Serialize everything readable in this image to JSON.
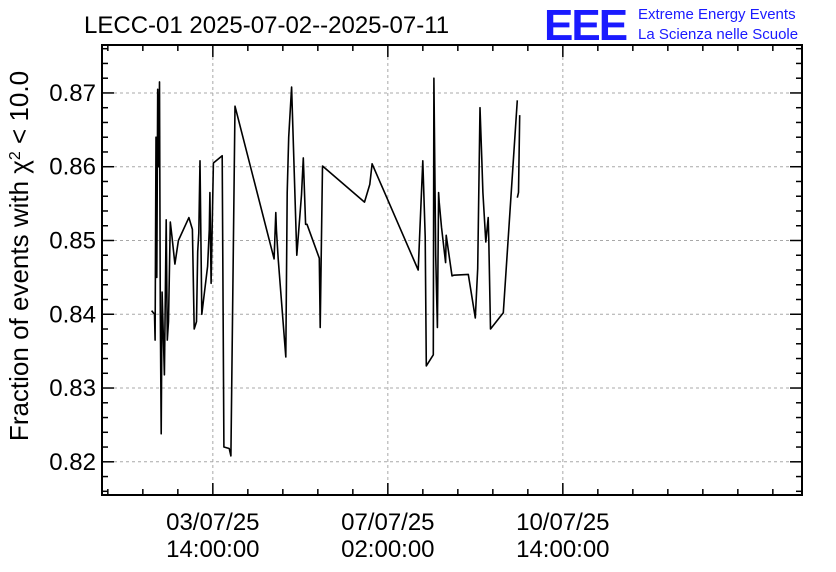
{
  "chart_data": {
    "type": "line",
    "title": "LECC-01 2025-07-02--2025-07-11",
    "ylabel_main": "Fraction of events with χ",
    "ylabel_sup": "2",
    "ylabel_tail": " < 10.0",
    "xlabel": "",
    "ylim": [
      0.8155,
      0.8765
    ],
    "y_ticks": [
      0.82,
      0.83,
      0.84,
      0.85,
      0.86,
      0.87
    ],
    "y_tick_labels": [
      "0.82",
      "0.83",
      "0.84",
      "0.85",
      "0.86",
      "0.87"
    ],
    "x_unit": "hours since start of plotted range",
    "xlim": [
      0,
      240
    ],
    "x_ticks": [
      {
        "x": 38,
        "date": "03/07/25",
        "time": "14:00:00"
      },
      {
        "x": 98,
        "date": "07/07/25",
        "time": "02:00:00"
      },
      {
        "x": 158,
        "date": "10/07/25",
        "time": "14:00:00"
      }
    ],
    "grid": true,
    "series": [
      {
        "x": [
          17.0,
          18.0,
          18.2,
          18.5,
          18.8,
          19.1,
          19.4,
          19.7,
          20.0,
          20.3,
          20.6,
          21.0,
          21.4,
          22.0,
          22.4,
          22.8,
          23.4,
          24.0,
          25.0,
          26.2,
          29.8,
          31.0,
          31.6,
          32.4,
          32.8,
          33.2,
          33.6,
          34.2,
          36.2,
          36.8,
          37.0,
          37.4,
          38.2,
          41.2,
          41.8,
          43.6,
          44.2,
          45.6,
          59.0,
          59.6,
          59.8,
          60.4,
          63.0,
          63.5,
          64.0,
          65.0,
          66.8,
          68.4,
          69.0,
          69.8,
          70.3,
          74.5,
          74.8,
          75.6,
          90.0,
          91.8,
          92.6,
          108.4,
          110.0,
          110.8,
          111.2,
          113.6,
          113.8,
          114.4,
          115.0,
          115.4,
          115.6,
          116.4,
          117.8,
          118.0,
          120.0,
          120.6,
          125.6,
          128.0,
          128.8,
          129.6,
          130.2,
          130.6,
          131.6,
          132.4,
          132.6,
          133.2,
          133.4,
          137.6,
          142.4
        ],
        "y": [
          0.8405,
          0.84,
          0.8365,
          0.864,
          0.845,
          0.8705,
          0.86,
          0.8715,
          0.8405,
          0.8238,
          0.843,
          0.8372,
          0.8318,
          0.8528,
          0.8365,
          0.839,
          0.8525,
          0.8505,
          0.8468,
          0.85,
          0.8531,
          0.8515,
          0.838,
          0.839,
          0.8485,
          0.851,
          0.8608,
          0.84,
          0.8465,
          0.8515,
          0.8565,
          0.8442,
          0.8605,
          0.8615,
          0.822,
          0.8218,
          0.8208,
          0.8682,
          0.8475,
          0.8538,
          0.8515,
          0.8475,
          0.8342,
          0.8565,
          0.864,
          0.8708,
          0.848,
          0.8562,
          0.8612,
          0.8522,
          0.8522,
          0.8476,
          0.8382,
          0.8601,
          0.8552,
          0.8576,
          0.8604,
          0.846,
          0.8608,
          0.8505,
          0.833,
          0.8345,
          0.872,
          0.848,
          0.8382,
          0.8565,
          0.8552,
          0.8518,
          0.847,
          0.8507,
          0.8452,
          0.8453,
          0.8454,
          0.8395,
          0.8462,
          0.868,
          0.861,
          0.8565,
          0.8498,
          0.8531,
          0.85,
          0.838,
          0.8381,
          0.8402,
          0.869
        ]
      },
      {
        "x": [
          142.4,
          142.8,
          143.2
        ],
        "y": [
          0.8558,
          0.8565,
          0.867
        ]
      }
    ]
  },
  "logo": {
    "mark": "EEE",
    "line1": "Extreme Energy Events",
    "line2": "La Scienza nelle Scuole"
  }
}
